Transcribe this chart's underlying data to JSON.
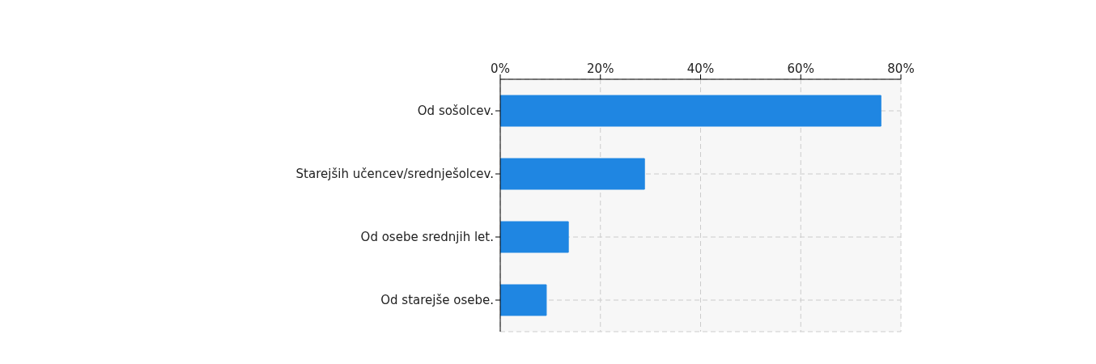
{
  "chart_data": {
    "type": "bar",
    "orientation": "horizontal",
    "categories": [
      "Od sošolcev.",
      "Starejših učencev/srednješolcev.",
      "Od osebe srednjih let.",
      "Od starejše osebe."
    ],
    "values": [
      76,
      28.8,
      13.6,
      9.2
    ],
    "color": "#1f86e2",
    "xlim": [
      0,
      80
    ],
    "xticks": [
      {
        "value": 0,
        "label": "0%"
      },
      {
        "value": 20,
        "label": "20%"
      },
      {
        "value": 40,
        "label": "40%"
      },
      {
        "value": 60,
        "label": "60%"
      },
      {
        "value": 80,
        "label": "80%"
      }
    ],
    "grid": true
  }
}
